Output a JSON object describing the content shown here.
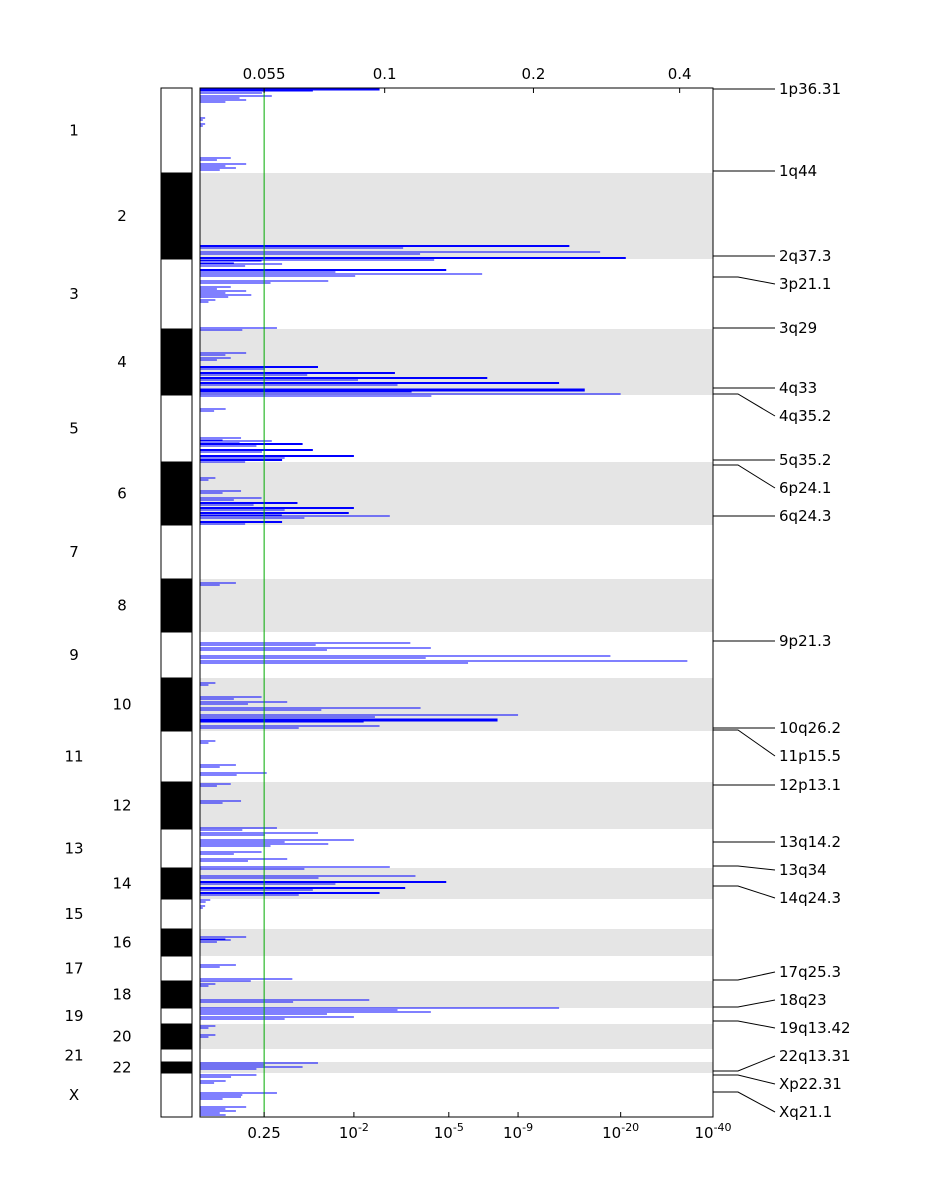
{
  "chart_data": {
    "type": "genome-scan-bar",
    "top_ticks": [
      "0.055",
      "0.1",
      "0.2",
      "0.4"
    ],
    "bottom_ticks": [
      {
        "base": "0.25",
        "exp": ""
      },
      {
        "base": "10",
        "exp": "-2"
      },
      {
        "base": "10",
        "exp": "-5"
      },
      {
        "base": "10",
        "exp": "-9"
      },
      {
        "base": "10",
        "exp": "-20"
      },
      {
        "base": "10",
        "exp": "-40"
      }
    ],
    "threshold": 0.25,
    "chromosomes": [
      {
        "label": "1",
        "start": 0,
        "end": 85,
        "dark": false,
        "col": "left"
      },
      {
        "label": "2",
        "start": 85,
        "end": 171,
        "dark": true,
        "col": "right"
      },
      {
        "label": "3",
        "start": 171,
        "end": 241,
        "dark": false,
        "col": "left"
      },
      {
        "label": "4",
        "start": 241,
        "end": 307,
        "dark": true,
        "col": "right"
      },
      {
        "label": "5",
        "start": 307,
        "end": 374,
        "dark": false,
        "col": "left"
      },
      {
        "label": "6",
        "start": 374,
        "end": 437,
        "dark": true,
        "col": "right"
      },
      {
        "label": "7",
        "start": 437,
        "end": 491,
        "dark": false,
        "col": "left"
      },
      {
        "label": "8",
        "start": 491,
        "end": 544,
        "dark": true,
        "col": "right"
      },
      {
        "label": "9",
        "start": 544,
        "end": 590,
        "dark": false,
        "col": "left"
      },
      {
        "label": "10",
        "start": 590,
        "end": 643,
        "dark": true,
        "col": "right"
      },
      {
        "label": "11",
        "start": 643,
        "end": 694,
        "dark": false,
        "col": "left"
      },
      {
        "label": "12",
        "start": 694,
        "end": 741,
        "dark": true,
        "col": "right"
      },
      {
        "label": "13",
        "start": 741,
        "end": 780,
        "dark": false,
        "col": "left"
      },
      {
        "label": "14",
        "start": 780,
        "end": 811,
        "dark": true,
        "col": "right"
      },
      {
        "label": "15",
        "start": 811,
        "end": 841,
        "dark": false,
        "col": "left"
      },
      {
        "label": "16",
        "start": 841,
        "end": 868,
        "dark": true,
        "col": "right"
      },
      {
        "label": "17",
        "start": 868,
        "end": 893,
        "dark": false,
        "col": "left"
      },
      {
        "label": "18",
        "start": 893,
        "end": 920,
        "dark": true,
        "col": "right"
      },
      {
        "label": "19",
        "start": 920,
        "end": 936,
        "dark": false,
        "col": "left"
      },
      {
        "label": "20",
        "start": 936,
        "end": 961,
        "dark": true,
        "col": "right"
      },
      {
        "label": "21",
        "start": 961,
        "end": 974,
        "dark": false,
        "col": "left"
      },
      {
        "label": "22",
        "start": 974,
        "end": 985,
        "dark": true,
        "col": "right"
      },
      {
        "label": "X",
        "start": 985,
        "end": 1029,
        "dark": false,
        "col": "left"
      }
    ],
    "annotations": [
      {
        "label": "1p36.31",
        "pos": 1
      },
      {
        "label": "1q44",
        "pos": 83
      },
      {
        "label": "2q37.3",
        "pos": 168
      },
      {
        "label": "3p21.1",
        "pos": 189
      },
      {
        "label": "3q29",
        "pos": 240
      },
      {
        "label": "4q33",
        "pos": 300
      },
      {
        "label": "4q35.2",
        "pos": 306
      },
      {
        "label": "5q35.2",
        "pos": 372
      },
      {
        "label": "6p24.1",
        "pos": 377
      },
      {
        "label": "6q24.3",
        "pos": 428
      },
      {
        "label": "9p21.3",
        "pos": 553
      },
      {
        "label": "10q26.2",
        "pos": 640
      },
      {
        "label": "11p15.5",
        "pos": 642
      },
      {
        "label": "12p13.1",
        "pos": 697
      },
      {
        "label": "13q14.2",
        "pos": 754
      },
      {
        "label": "13q34",
        "pos": 778
      },
      {
        "label": "14q24.3",
        "pos": 798
      },
      {
        "label": "17q25.3",
        "pos": 892
      },
      {
        "label": "18q23",
        "pos": 919
      },
      {
        "label": "19q13.42",
        "pos": 933
      },
      {
        "label": "22q13.31",
        "pos": 983
      },
      {
        "label": "Xp22.31",
        "pos": 987
      },
      {
        "label": "Xq21.1",
        "pos": 1004
      }
    ],
    "signals": [
      {
        "pos": 1,
        "value": 0.35,
        "width": 3
      },
      {
        "pos": 3,
        "value": 0.22
      },
      {
        "pos": 8,
        "value": 0.14
      },
      {
        "pos": 12,
        "value": 0.09
      },
      {
        "pos": 30,
        "value": 0.01
      },
      {
        "pos": 36,
        "value": 0.01
      },
      {
        "pos": 70,
        "value": 0.06
      },
      {
        "pos": 76,
        "value": 0.09
      },
      {
        "pos": 80,
        "value": 0.07
      },
      {
        "pos": 158,
        "value": 0.72,
        "width": 2
      },
      {
        "pos": 164,
        "value": 0.78
      },
      {
        "pos": 170,
        "value": 0.83,
        "width": 2
      },
      {
        "pos": 173,
        "value": 0.12
      },
      {
        "pos": 176,
        "value": 0.16
      },
      {
        "pos": 182,
        "value": 0.48,
        "width": 2
      },
      {
        "pos": 186,
        "value": 0.55
      },
      {
        "pos": 193,
        "value": 0.25
      },
      {
        "pos": 199,
        "value": 0.06
      },
      {
        "pos": 203,
        "value": 0.09
      },
      {
        "pos": 207,
        "value": 0.1
      },
      {
        "pos": 212,
        "value": 0.03
      },
      {
        "pos": 240,
        "value": 0.15
      },
      {
        "pos": 265,
        "value": 0.09
      },
      {
        "pos": 270,
        "value": 0.06
      },
      {
        "pos": 279,
        "value": 0.23,
        "width": 2
      },
      {
        "pos": 285,
        "value": 0.38,
        "width": 2
      },
      {
        "pos": 290,
        "value": 0.56,
        "width": 2
      },
      {
        "pos": 295,
        "value": 0.7,
        "width": 2
      },
      {
        "pos": 302,
        "value": 0.75,
        "width": 3
      },
      {
        "pos": 306,
        "value": 0.82
      },
      {
        "pos": 321,
        "value": 0.05
      },
      {
        "pos": 350,
        "value": 0.08
      },
      {
        "pos": 353,
        "value": 0.14
      },
      {
        "pos": 356,
        "value": 0.2,
        "width": 2
      },
      {
        "pos": 362,
        "value": 0.22,
        "width": 2
      },
      {
        "pos": 368,
        "value": 0.3,
        "width": 2
      },
      {
        "pos": 372,
        "value": 0.16,
        "width": 2
      },
      {
        "pos": 390,
        "value": 0.03
      },
      {
        "pos": 403,
        "value": 0.08
      },
      {
        "pos": 410,
        "value": 0.12
      },
      {
        "pos": 415,
        "value": 0.19,
        "width": 2
      },
      {
        "pos": 420,
        "value": 0.3,
        "width": 2
      },
      {
        "pos": 425,
        "value": 0.29,
        "width": 2
      },
      {
        "pos": 428,
        "value": 0.37
      },
      {
        "pos": 434,
        "value": 0.16,
        "width": 2
      },
      {
        "pos": 495,
        "value": 0.07
      },
      {
        "pos": 555,
        "value": 0.41
      },
      {
        "pos": 560,
        "value": 0.45
      },
      {
        "pos": 568,
        "value": 0.8
      },
      {
        "pos": 573,
        "value": 0.95
      },
      {
        "pos": 595,
        "value": 0.03
      },
      {
        "pos": 609,
        "value": 0.12
      },
      {
        "pos": 614,
        "value": 0.17
      },
      {
        "pos": 620,
        "value": 0.43
      },
      {
        "pos": 627,
        "value": 0.62
      },
      {
        "pos": 632,
        "value": 0.58,
        "width": 3
      },
      {
        "pos": 638,
        "value": 0.35
      },
      {
        "pos": 653,
        "value": 0.03
      },
      {
        "pos": 677,
        "value": 0.07
      },
      {
        "pos": 685,
        "value": 0.13
      },
      {
        "pos": 696,
        "value": 0.06
      },
      {
        "pos": 713,
        "value": 0.08
      },
      {
        "pos": 740,
        "value": 0.15
      },
      {
        "pos": 745,
        "value": 0.23
      },
      {
        "pos": 752,
        "value": 0.3
      },
      {
        "pos": 756,
        "value": 0.25
      },
      {
        "pos": 764,
        "value": 0.12
      },
      {
        "pos": 771,
        "value": 0.17
      },
      {
        "pos": 779,
        "value": 0.37
      },
      {
        "pos": 788,
        "value": 0.42
      },
      {
        "pos": 794,
        "value": 0.48,
        "width": 2
      },
      {
        "pos": 800,
        "value": 0.4,
        "width": 2
      },
      {
        "pos": 805,
        "value": 0.35,
        "width": 2
      },
      {
        "pos": 812,
        "value": 0.02
      },
      {
        "pos": 818,
        "value": 0.01
      },
      {
        "pos": 849,
        "value": 0.09
      },
      {
        "pos": 852,
        "value": 0.06
      },
      {
        "pos": 877,
        "value": 0.07
      },
      {
        "pos": 891,
        "value": 0.18
      },
      {
        "pos": 896,
        "value": 0.03
      },
      {
        "pos": 912,
        "value": 0.33
      },
      {
        "pos": 920,
        "value": 0.7
      },
      {
        "pos": 924,
        "value": 0.45
      },
      {
        "pos": 929,
        "value": 0.3
      },
      {
        "pos": 938,
        "value": 0.03
      },
      {
        "pos": 947,
        "value": 0.03
      },
      {
        "pos": 975,
        "value": 0.23
      },
      {
        "pos": 979,
        "value": 0.2
      },
      {
        "pos": 987,
        "value": 0.11
      },
      {
        "pos": 993,
        "value": 0.05
      },
      {
        "pos": 1005,
        "value": 0.15
      },
      {
        "pos": 1009,
        "value": 0.08
      },
      {
        "pos": 1019,
        "value": 0.09
      },
      {
        "pos": 1023,
        "value": 0.07
      },
      {
        "pos": 1027,
        "value": 0.05
      }
    ]
  }
}
